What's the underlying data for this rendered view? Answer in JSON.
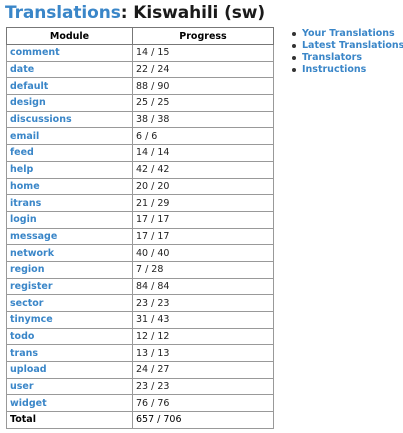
{
  "heading": {
    "link_text": "Translations",
    "separator": ": ",
    "language": "Kiswahili (sw)"
  },
  "table": {
    "headers": {
      "module": "Module",
      "progress": "Progress"
    },
    "rows": [
      {
        "module": "comment",
        "progress": "14 / 15"
      },
      {
        "module": "date",
        "progress": "22 / 24"
      },
      {
        "module": "default",
        "progress": "88 / 90"
      },
      {
        "module": "design",
        "progress": "25 / 25"
      },
      {
        "module": "discussions",
        "progress": "38 / 38"
      },
      {
        "module": "email",
        "progress": "6 / 6"
      },
      {
        "module": "feed",
        "progress": "14 / 14"
      },
      {
        "module": "help",
        "progress": "42 / 42"
      },
      {
        "module": "home",
        "progress": "20 / 20"
      },
      {
        "module": "itrans",
        "progress": "21 / 29"
      },
      {
        "module": "login",
        "progress": "17 / 17"
      },
      {
        "module": "message",
        "progress": "17 / 17"
      },
      {
        "module": "network",
        "progress": "40 / 40"
      },
      {
        "module": "region",
        "progress": "7 / 28"
      },
      {
        "module": "register",
        "progress": "84 / 84"
      },
      {
        "module": "sector",
        "progress": "23 / 23"
      },
      {
        "module": "tinymce",
        "progress": "31 / 43"
      },
      {
        "module": "todo",
        "progress": "12 / 12"
      },
      {
        "module": "trans",
        "progress": "13 / 13"
      },
      {
        "module": "upload",
        "progress": "24 / 27"
      },
      {
        "module": "user",
        "progress": "23 / 23"
      },
      {
        "module": "widget",
        "progress": "76 / 76"
      }
    ],
    "total": {
      "label": "Total",
      "progress": "657 / 706"
    }
  },
  "sidebar": {
    "links": [
      {
        "label": "Your Translations",
        "name": "your-translations-link"
      },
      {
        "label": "Latest Translations",
        "name": "latest-translations-link"
      },
      {
        "label": "Translators",
        "name": "translators-link"
      },
      {
        "label": "Instructions",
        "name": "instructions-link"
      }
    ]
  },
  "colors": {
    "link": "#3a86c8",
    "heading_text": "#1a1a1a",
    "table_border": "#999999"
  }
}
